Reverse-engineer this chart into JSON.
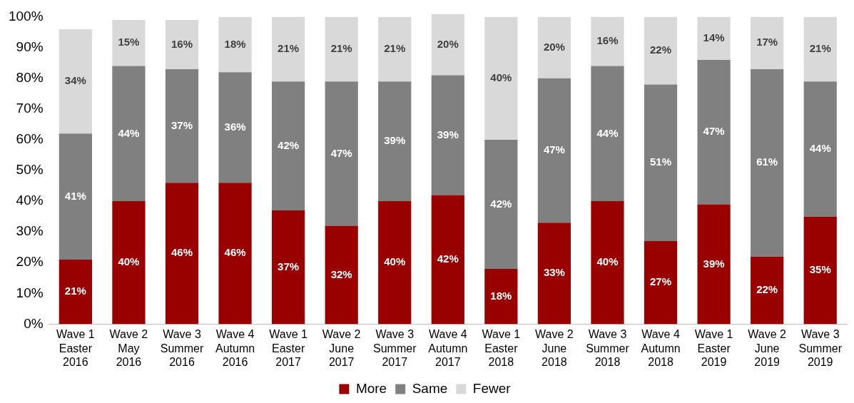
{
  "chart_data": {
    "type": "bar",
    "stacked": true,
    "categories": [
      "Wave 1\nEaster\n2016",
      "Wave 2\nMay\n2016",
      "Wave 3\nSummer\n2016",
      "Wave 4\nAutumn\n2016",
      "Wave 1\nEaster\n2017",
      "Wave 2\nJune\n2017",
      "Wave 3\nSummer\n2017",
      "Wave 4\nAutumn\n2017",
      "Wave 1\nEaster\n2018",
      "Wave 2\nJune\n2018",
      "Wave 3\nSummer\n2018",
      "Wave 4\nAutumn\n2018",
      "Wave 1\nEaster\n2019",
      "Wave 2\nJune\n2019",
      "Wave 3\nSummer\n2019"
    ],
    "series": [
      {
        "name": "More",
        "color": "#990000",
        "values": [
          21,
          40,
          46,
          46,
          37,
          32,
          40,
          42,
          18,
          33,
          40,
          27,
          39,
          22,
          35
        ],
        "value_labels": [
          "21%",
          "40%",
          "46%",
          "46%",
          "37%",
          "32%",
          "40%",
          "42%",
          "18%",
          "33%",
          "40%",
          "27%",
          "39%",
          "22%",
          "35%"
        ]
      },
      {
        "name": "Same",
        "color": "#808080",
        "values": [
          41,
          44,
          37,
          36,
          42,
          47,
          39,
          39,
          42,
          47,
          44,
          51,
          47,
          61,
          44
        ],
        "value_labels": [
          "41%",
          "44%",
          "37%",
          "36%",
          "42%",
          "47%",
          "39%",
          "39%",
          "42%",
          "47%",
          "44%",
          "51%",
          "47%",
          "61%",
          "44%"
        ]
      },
      {
        "name": "Fewer",
        "color": "#d9d9d9",
        "values": [
          34,
          15,
          16,
          18,
          21,
          21,
          21,
          20,
          40,
          20,
          16,
          22,
          14,
          17,
          21
        ],
        "value_labels": [
          "34%",
          "15%",
          "16%",
          "18%",
          "21%",
          "21%",
          "21%",
          "20%",
          "40%",
          "20%",
          "16%",
          "22%",
          "14%",
          "17%",
          "21%"
        ]
      }
    ],
    "ylim": [
      0,
      101
    ],
    "yticks": [
      {
        "value": 0,
        "label": "0%"
      },
      {
        "value": 10,
        "label": "10%"
      },
      {
        "value": 20,
        "label": "20%"
      },
      {
        "value": 30,
        "label": "30%"
      },
      {
        "value": 40,
        "label": "40%"
      },
      {
        "value": 50,
        "label": "50%"
      },
      {
        "value": 60,
        "label": "60%"
      },
      {
        "value": 70,
        "label": "70%"
      },
      {
        "value": 80,
        "label": "80%"
      },
      {
        "value": 90,
        "label": "90%"
      },
      {
        "value": 100,
        "label": "100%"
      }
    ],
    "grid": false,
    "legend": "bottom"
  }
}
